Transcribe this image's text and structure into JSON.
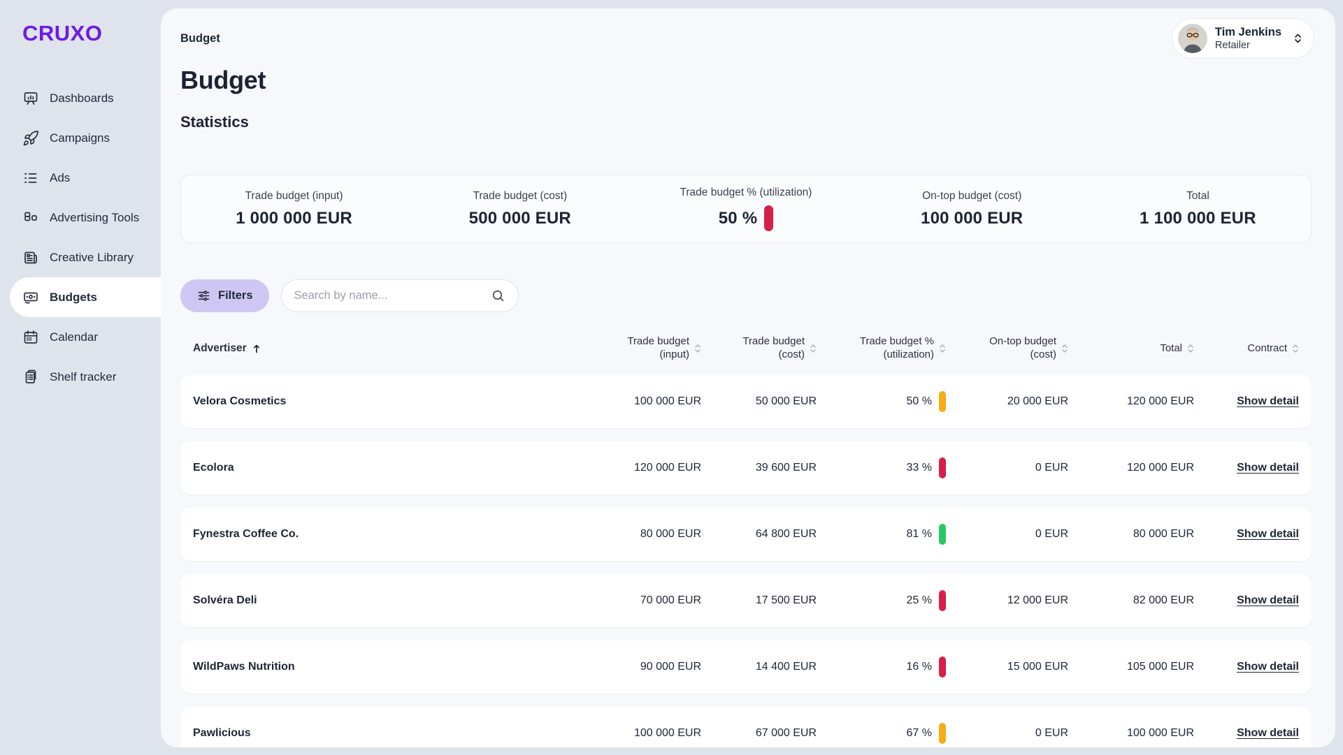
{
  "colors": {
    "brand_purple": "#6c1ce4",
    "red": "#d6204a",
    "amber": "#f6ac16",
    "green": "#29c765"
  },
  "brand": "CRUXO",
  "sidebar": {
    "items": [
      {
        "label": "Dashboards",
        "icon": "dashboards-icon"
      },
      {
        "label": "Campaigns",
        "icon": "campaigns-icon"
      },
      {
        "label": "Ads",
        "icon": "ads-icon"
      },
      {
        "label": "Advertising Tools",
        "icon": "advertising-tools-icon"
      },
      {
        "label": "Creative Library",
        "icon": "creative-library-icon"
      },
      {
        "label": "Budgets",
        "icon": "budgets-icon",
        "active": true
      },
      {
        "label": "Calendar",
        "icon": "calendar-icon"
      },
      {
        "label": "Shelf tracker",
        "icon": "shelf-tracker-icon"
      }
    ]
  },
  "header": {
    "breadcrumb": "Budget",
    "user": {
      "name": "Tim Jenkins",
      "role": "Retailer"
    }
  },
  "page": {
    "title": "Budget",
    "section_title": "Statistics"
  },
  "stats": [
    {
      "label": "Trade budget (input)",
      "value": "1 000 000 EUR"
    },
    {
      "label": "Trade budget (cost)",
      "value": "500 000 EUR"
    },
    {
      "label": "Trade budget % (utilization)",
      "value": "50 %",
      "indicator": "red"
    },
    {
      "label": "On-top budget (cost)",
      "value": "100 000 EUR"
    },
    {
      "label": "Total",
      "value": "1 100 000 EUR"
    }
  ],
  "toolbar": {
    "filters_label": "Filters",
    "search_placeholder": "Search by name..."
  },
  "table": {
    "columns": [
      {
        "label": "Advertiser",
        "sorted": "asc"
      },
      {
        "label": "Trade budget (input)"
      },
      {
        "label": "Trade budget (cost)"
      },
      {
        "label": "Trade budget % (utilization)"
      },
      {
        "label": "On-top budget (cost)"
      },
      {
        "label": "Total"
      },
      {
        "label": "Contract"
      }
    ],
    "rows": [
      {
        "advertiser": "Velora Cosmetics",
        "trade_input": "100 000 EUR",
        "trade_cost": "50 000 EUR",
        "utilization": "50 %",
        "utilization_status": "amber",
        "ontop_cost": "20 000 EUR",
        "total": "120 000 EUR",
        "contract": "Show detail"
      },
      {
        "advertiser": "Ecolora",
        "trade_input": "120 000 EUR",
        "trade_cost": "39 600 EUR",
        "utilization": "33 %",
        "utilization_status": "red",
        "ontop_cost": "0 EUR",
        "total": "120 000 EUR",
        "contract": "Show detail"
      },
      {
        "advertiser": "Fynestra Coffee Co.",
        "trade_input": "80 000 EUR",
        "trade_cost": "64 800 EUR",
        "utilization": "81 %",
        "utilization_status": "green",
        "ontop_cost": "0 EUR",
        "total": "80 000 EUR",
        "contract": "Show detail"
      },
      {
        "advertiser": "Solvéra Deli",
        "trade_input": "70 000 EUR",
        "trade_cost": "17 500 EUR",
        "utilization": "25 %",
        "utilization_status": "red",
        "ontop_cost": "12 000 EUR",
        "total": "82 000 EUR",
        "contract": "Show detail"
      },
      {
        "advertiser": "WildPaws Nutrition",
        "trade_input": "90 000 EUR",
        "trade_cost": "14 400 EUR",
        "utilization": "16 %",
        "utilization_status": "red",
        "ontop_cost": "15 000 EUR",
        "total": "105 000 EUR",
        "contract": "Show detail"
      },
      {
        "advertiser": "Pawlicious",
        "trade_input": "100 000 EUR",
        "trade_cost": "67 000 EUR",
        "utilization": "67 %",
        "utilization_status": "amber",
        "ontop_cost": "0 EUR",
        "total": "100 000 EUR",
        "contract": "Show detail"
      }
    ]
  }
}
